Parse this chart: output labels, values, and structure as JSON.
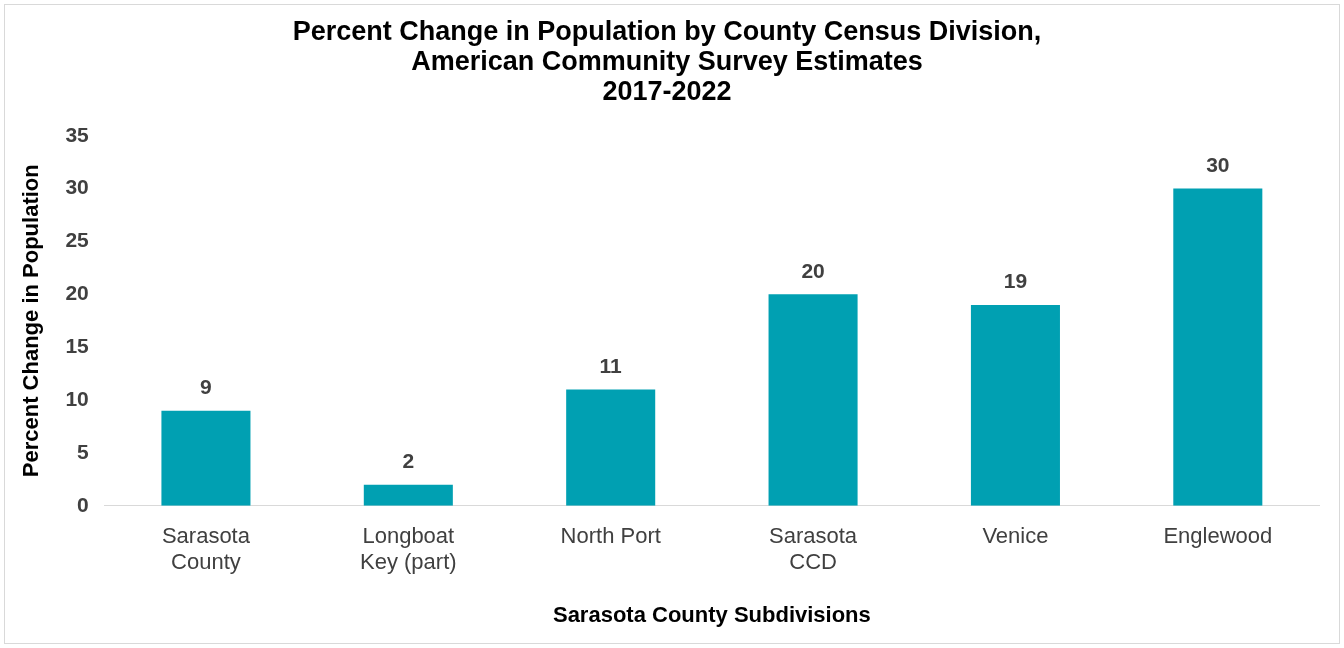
{
  "chart_data": {
    "type": "bar",
    "title": "Percent Change in Population by County Census Division,\nAmerican Community Survey Estimates\n2017-2022",
    "xlabel": "Sarasota County Subdivisions",
    "ylabel": "Percent Change in Population",
    "categories": [
      "Sarasota County",
      "Longboat Key (part)",
      "North Port",
      "Sarasota CCD",
      "Venice",
      "Englewood"
    ],
    "values": [
      9,
      2,
      11,
      20,
      19,
      30
    ],
    "color": "#00a0b2",
    "ylim": [
      0,
      35
    ],
    "yticks": [
      0,
      5,
      10,
      15,
      20,
      25,
      30,
      35
    ],
    "grid": false,
    "legend": false,
    "data_labels": true
  }
}
